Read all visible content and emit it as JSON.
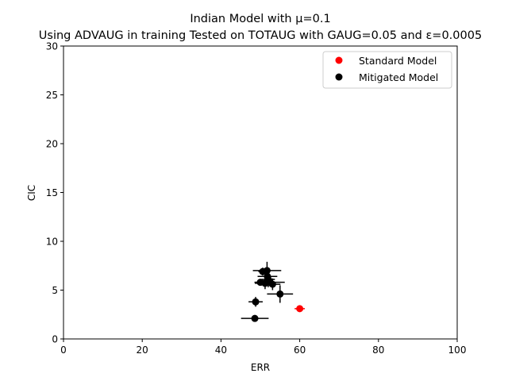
{
  "chart_data": {
    "type": "scatter",
    "title_line1": "Indian Model with μ=0.1",
    "title_line2": "Using ADVAUG in training Tested on TOTAUG with GAUG=0.05 and ε=0.0005",
    "xlabel": "ERR",
    "ylabel": "CIC",
    "xlim": [
      0,
      100
    ],
    "ylim": [
      0,
      30
    ],
    "xticks": [
      0,
      20,
      40,
      60,
      80,
      100
    ],
    "yticks": [
      0,
      5,
      10,
      15,
      20,
      25,
      30
    ],
    "grid": false,
    "legend_position": "upper right",
    "series": [
      {
        "name": "Standard Model",
        "color": "#ff0000",
        "points": [
          {
            "x": 60.0,
            "y": 3.1,
            "xerr": 1.3,
            "yerr": 0.25
          }
        ]
      },
      {
        "name": "Mitigated Model",
        "color": "#000000",
        "points": [
          {
            "x": 48.6,
            "y": 2.1,
            "xerr": 3.5,
            "yerr": 0.1
          },
          {
            "x": 48.8,
            "y": 3.8,
            "xerr": 1.8,
            "yerr": 0.5
          },
          {
            "x": 55.0,
            "y": 4.6,
            "xerr": 3.3,
            "yerr": 0.9
          },
          {
            "x": 50.0,
            "y": 5.8,
            "xerr": 1.5,
            "yerr": 0.3
          },
          {
            "x": 51.2,
            "y": 5.7,
            "xerr": 2.6,
            "yerr": 0.6
          },
          {
            "x": 52.4,
            "y": 5.8,
            "xerr": 3.8,
            "yerr": 0.4
          },
          {
            "x": 53.1,
            "y": 5.6,
            "xerr": 2.0,
            "yerr": 0.6
          },
          {
            "x": 52.0,
            "y": 6.1,
            "xerr": 1.7,
            "yerr": 0.8
          },
          {
            "x": 51.8,
            "y": 6.4,
            "xerr": 2.5,
            "yerr": 0.7
          },
          {
            "x": 50.6,
            "y": 6.9,
            "xerr": 1.1,
            "yerr": 0.4
          },
          {
            "x": 51.7,
            "y": 7.0,
            "xerr": 3.6,
            "yerr": 0.9
          }
        ]
      }
    ]
  }
}
